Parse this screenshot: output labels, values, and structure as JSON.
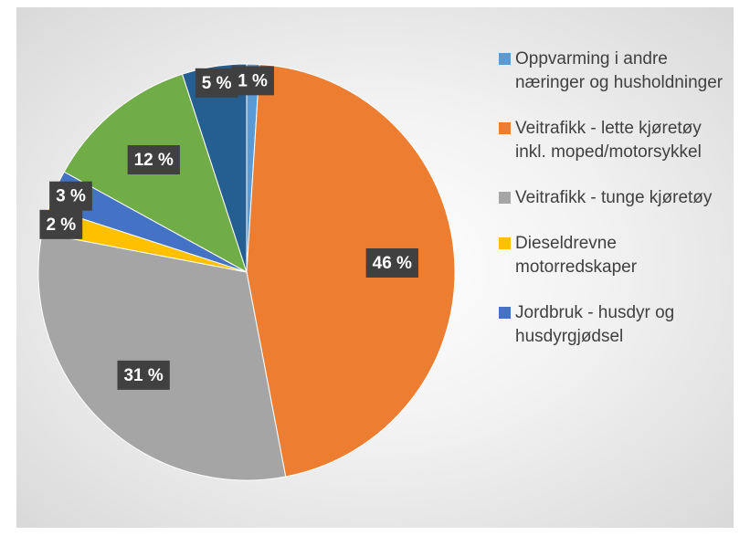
{
  "chart_data": {
    "type": "pie",
    "categories": [
      "Oppvarming i andre næringer og husholdninger",
      "Veitrafikk - lette kjøretøy inkl. moped/motorsykkel",
      "Veitrafikk - tunge kjøretøy",
      "Dieseldrevne motorredskaper",
      "Jordbruk - husdyr og husdyrgjødsel",
      null,
      null
    ],
    "values": [
      1,
      46,
      31,
      2,
      3,
      12,
      5
    ],
    "value_labels": [
      "1 %",
      "46 %",
      "31 %",
      "2 %",
      "3 %",
      "12 %",
      "5 %"
    ],
    "colors": [
      "#5b9bd5",
      "#ed7d31",
      "#a5a5a5",
      "#ffc000",
      "#4472c4",
      "#70ad47",
      "#255e91"
    ],
    "legend": "right"
  }
}
